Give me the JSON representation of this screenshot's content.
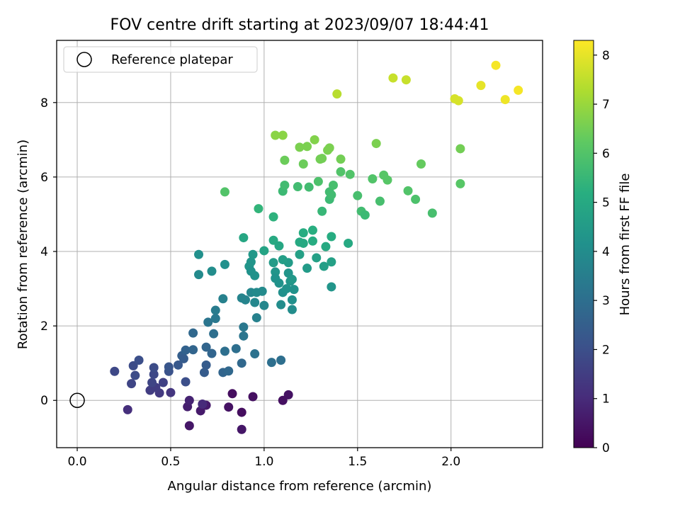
{
  "chart_data": {
    "type": "scatter",
    "title": "FOV centre drift starting at 2023/09/07 18:44:41",
    "xlabel": "Angular distance from reference (arcmin)",
    "ylabel": "Rotation from reference (arcmin)",
    "xlim": [
      -0.11,
      2.49
    ],
    "ylim": [
      -1.27,
      9.67
    ],
    "xticks": [
      0.0,
      0.5,
      1.0,
      1.5,
      2.0
    ],
    "xtick_labels": [
      "0.0",
      "0.5",
      "1.0",
      "1.5",
      "2.0"
    ],
    "yticks": [
      0,
      2,
      4,
      6,
      8
    ],
    "ytick_labels": [
      "0",
      "2",
      "4",
      "6",
      "8"
    ],
    "grid": true,
    "legend": {
      "position": "upper-left",
      "entries": [
        "Reference platepar"
      ]
    },
    "colorbar": {
      "label": "Hours from first FF file",
      "colormap": "viridis",
      "range": [
        0,
        8.3
      ],
      "ticks": [
        0,
        1,
        2,
        3,
        4,
        5,
        6,
        7,
        8
      ],
      "tick_labels": [
        "0",
        "1",
        "2",
        "3",
        "4",
        "5",
        "6",
        "7",
        "8"
      ]
    },
    "reference_point": {
      "x": 0.0,
      "y": 0.0,
      "marker": "open-circle"
    },
    "points": [
      {
        "x": 0.83,
        "y": 0.18,
        "t": 0.3
      },
      {
        "x": 0.94,
        "y": 0.1,
        "t": 0.35
      },
      {
        "x": 1.13,
        "y": 0.15,
        "t": 0.4
      },
      {
        "x": 1.1,
        "y": 0.0,
        "t": 0.35
      },
      {
        "x": 0.88,
        "y": -0.32,
        "t": 0.3
      },
      {
        "x": 0.81,
        "y": -0.18,
        "t": 0.4
      },
      {
        "x": 0.88,
        "y": -0.78,
        "t": 0.5
      },
      {
        "x": 0.6,
        "y": -0.68,
        "t": 0.5
      },
      {
        "x": 0.69,
        "y": -0.13,
        "t": 0.6
      },
      {
        "x": 0.66,
        "y": -0.28,
        "t": 0.6
      },
      {
        "x": 0.59,
        "y": -0.17,
        "t": 0.7
      },
      {
        "x": 0.6,
        "y": 0.0,
        "t": 0.8
      },
      {
        "x": 0.67,
        "y": -0.1,
        "t": 1.0
      },
      {
        "x": 0.27,
        "y": -0.25,
        "t": 1.1
      },
      {
        "x": 0.5,
        "y": 0.21,
        "t": 1.3
      },
      {
        "x": 0.44,
        "y": 0.2,
        "t": 1.4
      },
      {
        "x": 0.39,
        "y": 0.27,
        "t": 1.5
      },
      {
        "x": 0.42,
        "y": 0.35,
        "t": 1.5
      },
      {
        "x": 0.46,
        "y": 0.48,
        "t": 1.6
      },
      {
        "x": 0.4,
        "y": 0.48,
        "t": 1.7
      },
      {
        "x": 0.29,
        "y": 0.45,
        "t": 1.7
      },
      {
        "x": 0.41,
        "y": 0.7,
        "t": 1.8
      },
      {
        "x": 0.31,
        "y": 0.67,
        "t": 1.9
      },
      {
        "x": 0.2,
        "y": 0.78,
        "t": 1.8
      },
      {
        "x": 0.3,
        "y": 0.93,
        "t": 1.9
      },
      {
        "x": 0.33,
        "y": 1.08,
        "t": 2.0
      },
      {
        "x": 0.41,
        "y": 0.88,
        "t": 1.9
      },
      {
        "x": 0.49,
        "y": 0.78,
        "t": 2.1
      },
      {
        "x": 0.49,
        "y": 0.9,
        "t": 2.2
      },
      {
        "x": 0.54,
        "y": 0.95,
        "t": 2.3
      },
      {
        "x": 0.56,
        "y": 1.2,
        "t": 2.5
      },
      {
        "x": 0.57,
        "y": 1.12,
        "t": 2.4
      },
      {
        "x": 0.58,
        "y": 1.35,
        "t": 2.6
      },
      {
        "x": 0.58,
        "y": 0.5,
        "t": 2.0
      },
      {
        "x": 0.62,
        "y": 1.36,
        "t": 2.7
      },
      {
        "x": 0.62,
        "y": 1.81,
        "t": 2.8
      },
      {
        "x": 0.68,
        "y": 0.75,
        "t": 2.4
      },
      {
        "x": 0.69,
        "y": 0.95,
        "t": 2.4
      },
      {
        "x": 0.69,
        "y": 1.43,
        "t": 2.7
      },
      {
        "x": 0.72,
        "y": 1.26,
        "t": 2.7
      },
      {
        "x": 0.73,
        "y": 1.79,
        "t": 3.0
      },
      {
        "x": 0.7,
        "y": 2.1,
        "t": 3.2
      },
      {
        "x": 0.74,
        "y": 2.2,
        "t": 3.3
      },
      {
        "x": 0.74,
        "y": 2.42,
        "t": 3.4
      },
      {
        "x": 0.78,
        "y": 0.75,
        "t": 2.7
      },
      {
        "x": 0.79,
        "y": 1.32,
        "t": 3.0
      },
      {
        "x": 0.81,
        "y": 0.79,
        "t": 2.8
      },
      {
        "x": 0.85,
        "y": 1.39,
        "t": 3.0
      },
      {
        "x": 0.88,
        "y": 1.0,
        "t": 2.8
      },
      {
        "x": 0.89,
        "y": 1.73,
        "t": 3.2
      },
      {
        "x": 0.89,
        "y": 1.97,
        "t": 3.3
      },
      {
        "x": 0.95,
        "y": 1.25,
        "t": 3.1
      },
      {
        "x": 1.04,
        "y": 1.02,
        "t": 3.0
      },
      {
        "x": 1.09,
        "y": 1.08,
        "t": 3.0
      },
      {
        "x": 0.78,
        "y": 2.73,
        "t": 3.6
      },
      {
        "x": 0.88,
        "y": 2.75,
        "t": 3.7
      },
      {
        "x": 0.9,
        "y": 2.7,
        "t": 3.7
      },
      {
        "x": 0.93,
        "y": 2.9,
        "t": 3.8
      },
      {
        "x": 0.95,
        "y": 2.63,
        "t": 3.8
      },
      {
        "x": 0.96,
        "y": 2.22,
        "t": 3.6
      },
      {
        "x": 0.96,
        "y": 2.9,
        "t": 3.9
      },
      {
        "x": 0.99,
        "y": 2.93,
        "t": 3.9
      },
      {
        "x": 1.0,
        "y": 2.55,
        "t": 3.8
      },
      {
        "x": 0.65,
        "y": 3.38,
        "t": 3.9
      },
      {
        "x": 0.65,
        "y": 3.92,
        "t": 4.1
      },
      {
        "x": 0.72,
        "y": 3.47,
        "t": 4.0
      },
      {
        "x": 0.79,
        "y": 3.65,
        "t": 4.1
      },
      {
        "x": 0.93,
        "y": 3.72,
        "t": 4.3
      },
      {
        "x": 0.94,
        "y": 3.92,
        "t": 4.4
      },
      {
        "x": 0.92,
        "y": 3.6,
        "t": 4.3
      },
      {
        "x": 0.93,
        "y": 3.47,
        "t": 4.2
      },
      {
        "x": 0.95,
        "y": 3.35,
        "t": 4.2
      },
      {
        "x": 1.06,
        "y": 3.45,
        "t": 4.3
      },
      {
        "x": 1.06,
        "y": 3.28,
        "t": 4.2
      },
      {
        "x": 1.08,
        "y": 3.15,
        "t": 4.2
      },
      {
        "x": 1.09,
        "y": 2.57,
        "t": 4.0
      },
      {
        "x": 1.1,
        "y": 2.9,
        "t": 4.1
      },
      {
        "x": 1.12,
        "y": 3.0,
        "t": 4.2
      },
      {
        "x": 1.13,
        "y": 3.42,
        "t": 4.3
      },
      {
        "x": 1.14,
        "y": 3.2,
        "t": 4.3
      },
      {
        "x": 1.15,
        "y": 3.25,
        "t": 4.4
      },
      {
        "x": 1.15,
        "y": 2.44,
        "t": 4.0
      },
      {
        "x": 1.15,
        "y": 2.7,
        "t": 4.1
      },
      {
        "x": 1.16,
        "y": 2.98,
        "t": 4.2
      },
      {
        "x": 1.13,
        "y": 3.7,
        "t": 4.5
      },
      {
        "x": 1.05,
        "y": 3.7,
        "t": 4.5
      },
      {
        "x": 1.1,
        "y": 3.78,
        "t": 4.6
      },
      {
        "x": 1.19,
        "y": 3.92,
        "t": 4.7
      },
      {
        "x": 1.23,
        "y": 3.55,
        "t": 4.5
      },
      {
        "x": 1.28,
        "y": 3.83,
        "t": 4.7
      },
      {
        "x": 1.32,
        "y": 3.6,
        "t": 4.6
      },
      {
        "x": 1.36,
        "y": 3.72,
        "t": 4.7
      },
      {
        "x": 1.36,
        "y": 3.05,
        "t": 4.3
      },
      {
        "x": 1.0,
        "y": 4.02,
        "t": 4.8
      },
      {
        "x": 0.89,
        "y": 4.37,
        "t": 4.9
      },
      {
        "x": 1.05,
        "y": 4.3,
        "t": 5.0
      },
      {
        "x": 1.08,
        "y": 4.15,
        "t": 4.9
      },
      {
        "x": 1.19,
        "y": 4.25,
        "t": 5.0
      },
      {
        "x": 1.21,
        "y": 4.22,
        "t": 5.0
      },
      {
        "x": 1.21,
        "y": 4.5,
        "t": 5.1
      },
      {
        "x": 1.26,
        "y": 4.28,
        "t": 5.1
      },
      {
        "x": 1.26,
        "y": 4.57,
        "t": 5.2
      },
      {
        "x": 1.33,
        "y": 4.13,
        "t": 5.0
      },
      {
        "x": 1.36,
        "y": 4.4,
        "t": 5.1
      },
      {
        "x": 1.45,
        "y": 4.22,
        "t": 5.0
      },
      {
        "x": 0.97,
        "y": 5.15,
        "t": 5.4
      },
      {
        "x": 1.05,
        "y": 4.93,
        "t": 5.3
      },
      {
        "x": 1.1,
        "y": 5.62,
        "t": 5.6
      },
      {
        "x": 1.11,
        "y": 5.78,
        "t": 5.7
      },
      {
        "x": 1.18,
        "y": 5.74,
        "t": 5.7
      },
      {
        "x": 1.24,
        "y": 5.73,
        "t": 5.7
      },
      {
        "x": 1.31,
        "y": 5.08,
        "t": 5.5
      },
      {
        "x": 1.35,
        "y": 5.6,
        "t": 5.7
      },
      {
        "x": 1.35,
        "y": 5.4,
        "t": 5.6
      },
      {
        "x": 1.36,
        "y": 5.52,
        "t": 5.7
      },
      {
        "x": 1.37,
        "y": 5.78,
        "t": 5.8
      },
      {
        "x": 0.79,
        "y": 5.6,
        "t": 6.0
      },
      {
        "x": 1.29,
        "y": 5.88,
        "t": 5.9
      },
      {
        "x": 1.41,
        "y": 6.14,
        "t": 6.0
      },
      {
        "x": 1.46,
        "y": 6.07,
        "t": 6.0
      },
      {
        "x": 1.5,
        "y": 5.5,
        "t": 5.8
      },
      {
        "x": 1.52,
        "y": 5.08,
        "t": 5.7
      },
      {
        "x": 1.54,
        "y": 4.98,
        "t": 5.6
      },
      {
        "x": 1.58,
        "y": 5.95,
        "t": 6.0
      },
      {
        "x": 1.62,
        "y": 5.35,
        "t": 5.8
      },
      {
        "x": 1.64,
        "y": 6.05,
        "t": 6.1
      },
      {
        "x": 1.66,
        "y": 5.92,
        "t": 6.1
      },
      {
        "x": 1.77,
        "y": 5.63,
        "t": 6.0
      },
      {
        "x": 1.81,
        "y": 5.4,
        "t": 5.9
      },
      {
        "x": 1.84,
        "y": 6.35,
        "t": 6.3
      },
      {
        "x": 1.9,
        "y": 5.03,
        "t": 5.8
      },
      {
        "x": 2.05,
        "y": 5.82,
        "t": 6.1
      },
      {
        "x": 2.05,
        "y": 6.76,
        "t": 6.5
      },
      {
        "x": 1.6,
        "y": 6.9,
        "t": 6.6
      },
      {
        "x": 1.11,
        "y": 6.45,
        "t": 6.4
      },
      {
        "x": 1.21,
        "y": 6.35,
        "t": 6.4
      },
      {
        "x": 1.23,
        "y": 6.82,
        "t": 6.6
      },
      {
        "x": 1.19,
        "y": 6.8,
        "t": 6.6
      },
      {
        "x": 1.27,
        "y": 7.0,
        "t": 6.7
      },
      {
        "x": 1.3,
        "y": 6.48,
        "t": 6.5
      },
      {
        "x": 1.31,
        "y": 6.5,
        "t": 6.5
      },
      {
        "x": 1.34,
        "y": 6.72,
        "t": 6.6
      },
      {
        "x": 1.35,
        "y": 6.78,
        "t": 6.6
      },
      {
        "x": 1.41,
        "y": 6.48,
        "t": 6.5
      },
      {
        "x": 1.06,
        "y": 7.12,
        "t": 6.8
      },
      {
        "x": 1.1,
        "y": 7.12,
        "t": 6.8
      },
      {
        "x": 1.39,
        "y": 8.23,
        "t": 7.4
      },
      {
        "x": 1.69,
        "y": 8.66,
        "t": 7.6
      },
      {
        "x": 1.76,
        "y": 8.61,
        "t": 7.6
      },
      {
        "x": 2.02,
        "y": 8.1,
        "t": 7.8
      },
      {
        "x": 2.04,
        "y": 8.05,
        "t": 7.8
      },
      {
        "x": 2.16,
        "y": 8.46,
        "t": 8.0
      },
      {
        "x": 2.24,
        "y": 9.0,
        "t": 8.2
      },
      {
        "x": 2.29,
        "y": 8.08,
        "t": 8.1
      },
      {
        "x": 2.36,
        "y": 8.33,
        "t": 8.2
      }
    ]
  }
}
